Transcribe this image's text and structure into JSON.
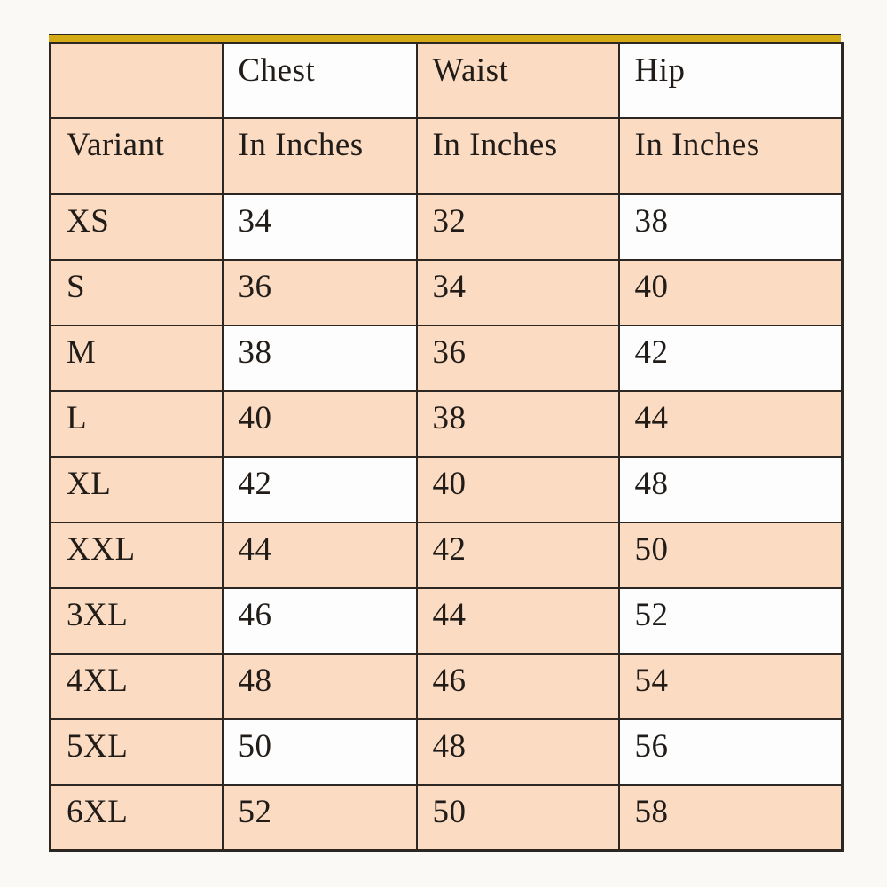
{
  "colors": {
    "peach": "#fbdcc3",
    "white_cell": "#fdfdfd",
    "border": "#2c2722",
    "gold_accent": "#d4ab15",
    "page_bg": "#fbf9f6",
    "text": "#211c18"
  },
  "table": {
    "header_row1": {
      "c0": "",
      "c1": "Chest",
      "c2": "Waist",
      "c3": "Hip"
    },
    "header_row2": {
      "c0": "Variant",
      "c1": "In Inches",
      "c2": "In Inches",
      "c3": "In Inches"
    },
    "rows": [
      {
        "variant": "XS",
        "chest": "34",
        "waist": "32",
        "hip": "38"
      },
      {
        "variant": "S",
        "chest": "36",
        "waist": "34",
        "hip": "40"
      },
      {
        "variant": "M",
        "chest": "38",
        "waist": "36",
        "hip": "42"
      },
      {
        "variant": "L",
        "chest": "40",
        "waist": "38",
        "hip": "44"
      },
      {
        "variant": "XL",
        "chest": "42",
        "waist": "40",
        "hip": "48"
      },
      {
        "variant": "XXL",
        "chest": "44",
        "waist": "42",
        "hip": "50"
      },
      {
        "variant": "3XL",
        "chest": "46",
        "waist": "44",
        "hip": "52"
      },
      {
        "variant": "4XL",
        "chest": "48",
        "waist": "46",
        "hip": "54"
      },
      {
        "variant": "5XL",
        "chest": "50",
        "waist": "48",
        "hip": "56"
      },
      {
        "variant": "6XL",
        "chest": "52",
        "waist": "50",
        "hip": "58"
      }
    ]
  },
  "chart_data": {
    "type": "table",
    "title": "",
    "columns": [
      "Variant",
      "Chest In Inches",
      "Waist In Inches",
      "Hip In Inches"
    ],
    "rows": [
      [
        "XS",
        34,
        32,
        38
      ],
      [
        "S",
        36,
        34,
        40
      ],
      [
        "M",
        38,
        36,
        42
      ],
      [
        "L",
        40,
        38,
        44
      ],
      [
        "XL",
        42,
        40,
        48
      ],
      [
        "XXL",
        44,
        42,
        50
      ],
      [
        "3XL",
        46,
        44,
        52
      ],
      [
        "4XL",
        48,
        46,
        54
      ],
      [
        "5XL",
        50,
        48,
        56
      ],
      [
        "6XL",
        52,
        50,
        58
      ]
    ],
    "layout_hints": {
      "row_shading": "alternating white/peach on Chest and Hip columns only; Variant and Waist columns always peach",
      "top_accent": "gold bar along top border",
      "grid": true
    }
  }
}
